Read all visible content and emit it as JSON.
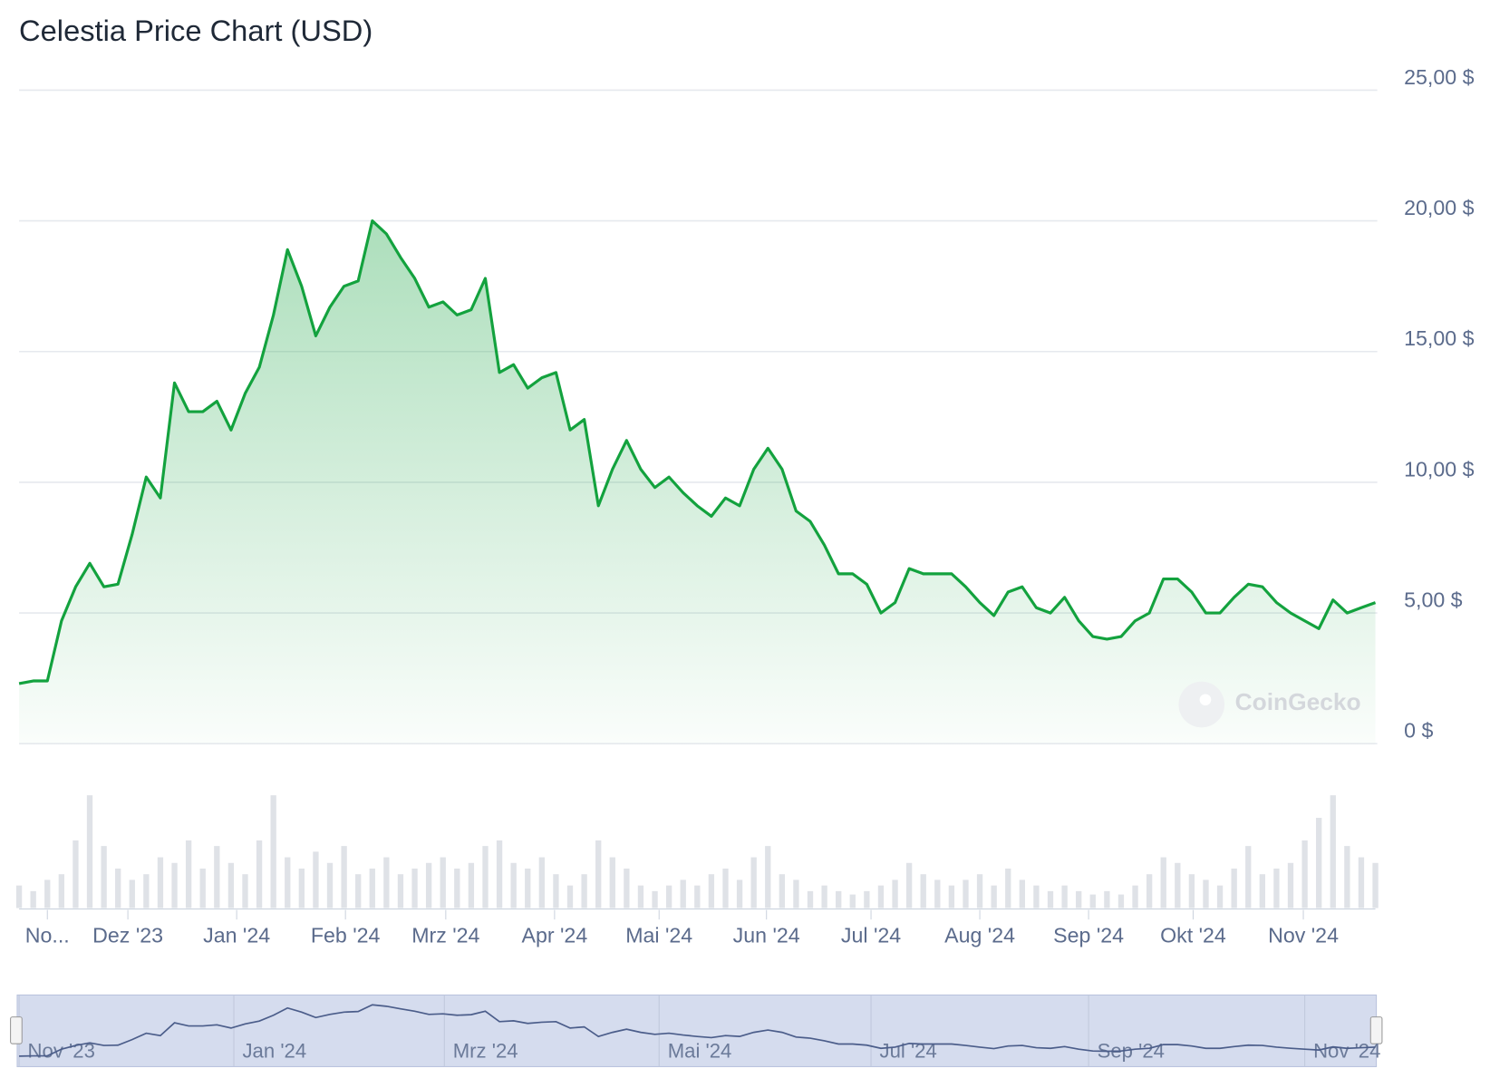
{
  "chart_data": {
    "type": "line",
    "title": "Celestia Price Chart (USD)",
    "watermark": "CoinGecko",
    "color": "#13a23e",
    "values": [
      2.3,
      2.4,
      2.4,
      4.7,
      6.0,
      6.9,
      6.0,
      6.1,
      8.0,
      10.2,
      9.4,
      13.8,
      12.7,
      12.7,
      13.1,
      12.0,
      13.4,
      14.4,
      16.4,
      18.9,
      17.5,
      15.6,
      16.7,
      17.5,
      17.7,
      20.0,
      19.5,
      18.6,
      17.8,
      16.7,
      16.9,
      16.4,
      16.6,
      17.8,
      14.2,
      14.5,
      13.6,
      14.0,
      14.2,
      12.0,
      12.4,
      9.1,
      10.5,
      11.6,
      10.5,
      9.8,
      10.2,
      9.6,
      9.1,
      8.7,
      9.4,
      9.1,
      10.5,
      11.3,
      10.5,
      8.9,
      8.5,
      7.6,
      6.5,
      6.5,
      6.1,
      5.0,
      5.4,
      6.7,
      6.5,
      6.5,
      6.5,
      6.0,
      5.4,
      4.9,
      5.8,
      6.0,
      5.2,
      5.0,
      5.6,
      4.7,
      4.1,
      4.0,
      4.1,
      4.7,
      5.0,
      6.3,
      6.3,
      5.8,
      5.0,
      5.0,
      5.6,
      6.1,
      6.0,
      5.4,
      5.0,
      4.7,
      4.4,
      5.5,
      5.0,
      5.2,
      5.4
    ],
    "volumes": [
      20,
      15,
      25,
      30,
      60,
      100,
      55,
      35,
      25,
      30,
      45,
      40,
      60,
      35,
      55,
      40,
      30,
      60,
      100,
      45,
      35,
      50,
      40,
      55,
      30,
      35,
      45,
      30,
      35,
      40,
      45,
      35,
      40,
      55,
      60,
      40,
      35,
      45,
      30,
      20,
      30,
      60,
      45,
      35,
      20,
      15,
      20,
      25,
      20,
      30,
      35,
      25,
      45,
      55,
      30,
      25,
      15,
      20,
      15,
      12,
      15,
      20,
      25,
      40,
      30,
      25,
      20,
      25,
      30,
      20,
      35,
      25,
      20,
      15,
      20,
      15,
      12,
      15,
      12,
      20,
      30,
      45,
      40,
      30,
      25,
      20,
      35,
      55,
      30,
      35,
      40,
      60,
      80,
      100,
      55,
      45,
      40
    ],
    "xlim": [
      0,
      96
    ],
    "xticks": [
      {
        "value": 2,
        "label": "No..."
      },
      {
        "value": 7.7,
        "label": "Dez '23"
      },
      {
        "value": 15.4,
        "label": "Jan '24"
      },
      {
        "value": 23.1,
        "label": "Feb '24"
      },
      {
        "value": 30.2,
        "label": "Mrz '24"
      },
      {
        "value": 37.9,
        "label": "Apr '24"
      },
      {
        "value": 45.3,
        "label": "Mai '24"
      },
      {
        "value": 52.9,
        "label": "Jun '24"
      },
      {
        "value": 60.3,
        "label": "Jul '24"
      },
      {
        "value": 68,
        "label": "Aug '24"
      },
      {
        "value": 75.7,
        "label": "Sep '24"
      },
      {
        "value": 83.1,
        "label": "Okt '24"
      },
      {
        "value": 90.9,
        "label": "Nov '24"
      }
    ],
    "navigator_xticks": [
      {
        "value": 0,
        "label": "Nov '23"
      },
      {
        "value": 15.2,
        "label": "Jan '24"
      },
      {
        "value": 30.1,
        "label": "Mrz '24"
      },
      {
        "value": 45.3,
        "label": "Mai '24"
      },
      {
        "value": 60.3,
        "label": "Jul '24"
      },
      {
        "value": 75.7,
        "label": "Sep '24"
      },
      {
        "value": 91,
        "label": "Nov '24"
      }
    ],
    "ylim": [
      0,
      25
    ],
    "yticks": [
      {
        "value": 0,
        "label": "0 $"
      },
      {
        "value": 5,
        "label": "5,00 $"
      },
      {
        "value": 10,
        "label": "10,00 $"
      },
      {
        "value": 15,
        "label": "15,00 $"
      },
      {
        "value": 20,
        "label": "20,00 $"
      },
      {
        "value": 25,
        "label": "25,00 $"
      }
    ],
    "grid": true
  }
}
